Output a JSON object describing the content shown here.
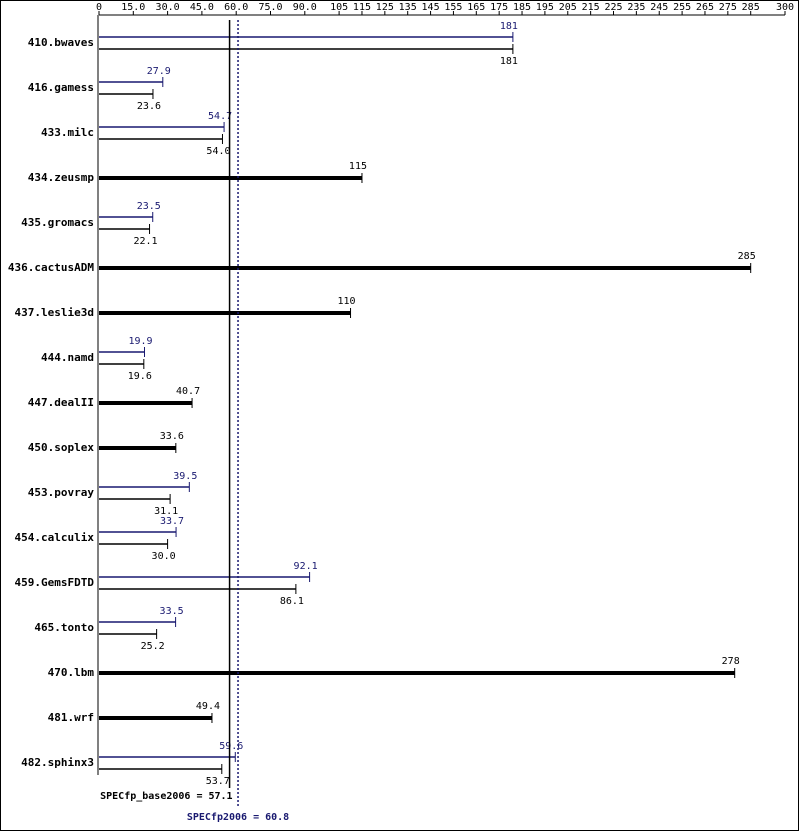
{
  "chart_data": {
    "type": "bar",
    "orientation": "horizontal",
    "categories": [
      "410.bwaves",
      "416.gamess",
      "433.milc",
      "434.zeusmp",
      "435.gromacs",
      "436.cactusADM",
      "437.leslie3d",
      "444.namd",
      "447.dealII",
      "450.soplex",
      "453.povray",
      "454.calculix",
      "459.GemsFDTD",
      "465.tonto",
      "470.lbm",
      "481.wrf",
      "482.sphinx3"
    ],
    "series": [
      {
        "color": "#000000",
        "values": [
          181,
          23.6,
          54.0,
          115,
          22.1,
          285,
          110,
          19.6,
          40.7,
          33.6,
          31.1,
          30.0,
          86.1,
          25.2,
          278,
          49.4,
          53.7
        ],
        "value_labels": [
          "181",
          "23.6",
          "54.0",
          "115",
          "22.1",
          "285",
          "110",
          "19.6",
          "40.7",
          "33.6",
          "31.1",
          "30.0",
          "86.1",
          "25.2",
          "278",
          "49.4",
          "53.7"
        ]
      },
      {
        "color": "#191970",
        "values": [
          181,
          27.9,
          54.7,
          null,
          23.5,
          null,
          null,
          19.9,
          null,
          null,
          39.5,
          33.7,
          92.1,
          33.5,
          null,
          null,
          59.6
        ],
        "value_labels": [
          "181",
          "27.9",
          "54.7",
          null,
          "23.5",
          null,
          null,
          "19.9",
          null,
          null,
          "39.5",
          "33.7",
          "92.1",
          "33.5",
          null,
          null,
          "59.6"
        ]
      }
    ],
    "xlim": [
      0,
      300
    ],
    "xticks": [
      0,
      {
        "value": 15,
        "label": "15.0"
      },
      {
        "value": 30,
        "label": "30.0"
      },
      {
        "value": 45,
        "label": "45.0"
      },
      {
        "value": 60,
        "label": "60.0"
      },
      {
        "value": 75,
        "label": "75.0"
      },
      {
        "value": 90,
        "label": "90.0"
      },
      105,
      115,
      125,
      135,
      145,
      155,
      165,
      175,
      185,
      195,
      205,
      215,
      225,
      235,
      245,
      255,
      265,
      275,
      285,
      300
    ],
    "summary": [
      {
        "label": "SPECfp_base2006 = 57.1",
        "value": 57.1,
        "color": "#000000"
      },
      {
        "label": "SPECfp2006 = 60.8",
        "value": 60.8,
        "color": "#191970"
      }
    ]
  }
}
